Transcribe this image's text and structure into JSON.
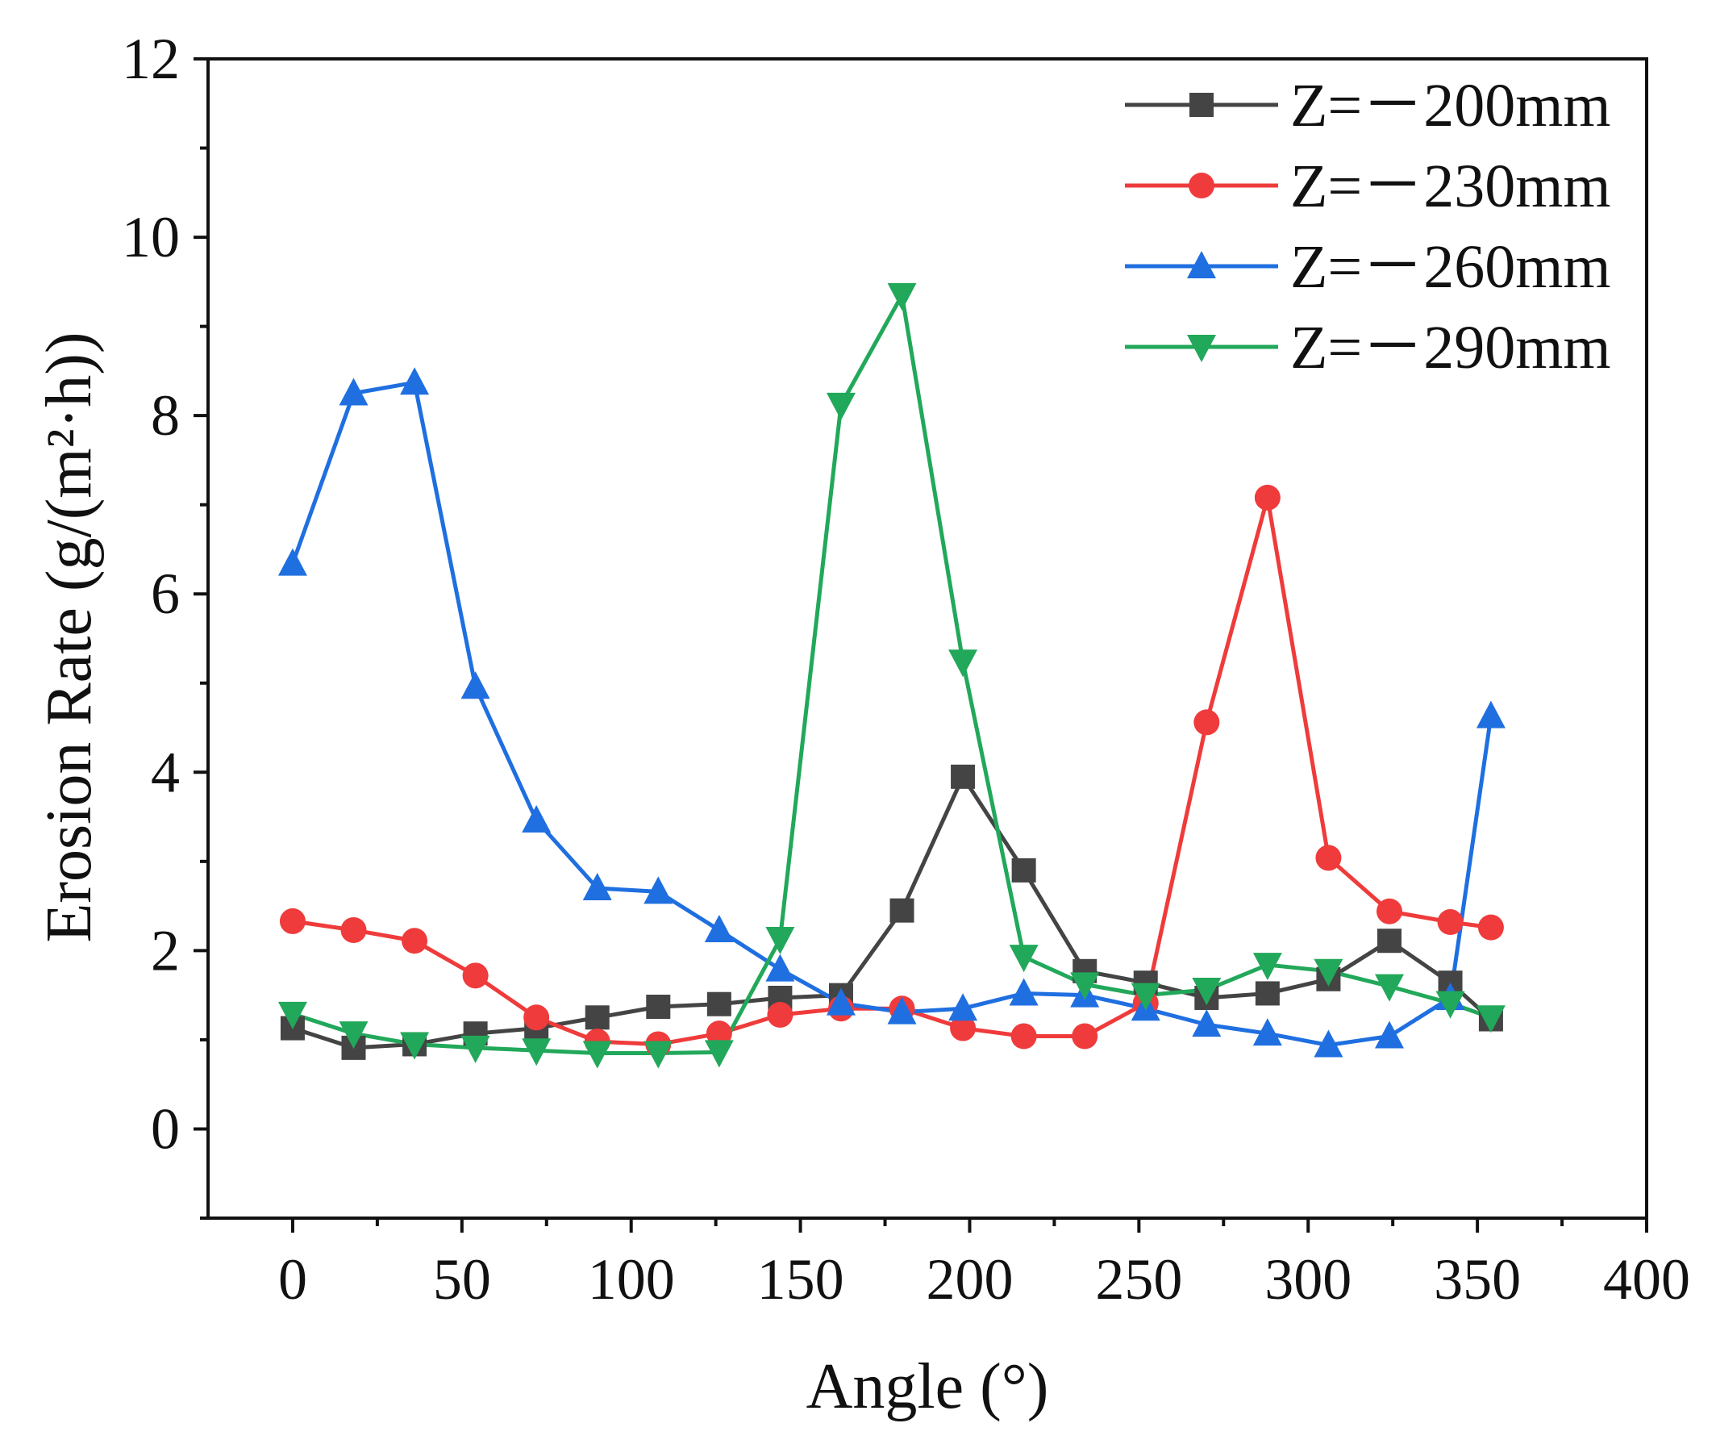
{
  "chart_data": {
    "type": "line",
    "title": "",
    "xlabel": "Angle (°)",
    "ylabel": "Erosion Rate (g/(m²·h))",
    "xlim": [
      -25,
      400
    ],
    "ylim": [
      -1,
      12
    ],
    "xticks": [
      0,
      50,
      100,
      150,
      200,
      250,
      300,
      350,
      400
    ],
    "yticks": [
      0,
      2,
      4,
      6,
      8,
      10,
      12
    ],
    "grid": false,
    "legend_position": "top-right",
    "x": [
      0,
      18,
      36,
      54,
      72,
      90,
      108,
      126,
      144,
      162,
      180,
      198,
      216,
      234,
      252,
      270,
      288,
      306,
      324,
      342,
      354
    ],
    "series": [
      {
        "name": "Z=－200mm",
        "color": "#444444",
        "marker": "square",
        "values": [
          1.13,
          0.91,
          0.95,
          1.07,
          1.13,
          1.25,
          1.37,
          1.4,
          1.47,
          1.5,
          2.45,
          3.95,
          2.9,
          1.77,
          1.64,
          1.47,
          1.52,
          1.68,
          2.11,
          1.64,
          1.23
        ]
      },
      {
        "name": "Z=－230mm",
        "color": "#ef3b3b",
        "marker": "circle",
        "values": [
          2.33,
          2.23,
          2.11,
          1.72,
          1.25,
          0.98,
          0.95,
          1.07,
          1.28,
          1.35,
          1.35,
          1.13,
          1.04,
          1.04,
          1.41,
          4.56,
          7.08,
          3.04,
          2.44,
          2.32,
          2.26
        ]
      },
      {
        "name": "Z=－260mm",
        "color": "#1f6fe0",
        "marker": "triangle-up",
        "values": [
          6.34,
          8.25,
          8.37,
          4.96,
          3.46,
          2.7,
          2.66,
          2.23,
          1.79,
          1.41,
          1.31,
          1.35,
          1.52,
          1.5,
          1.35,
          1.17,
          1.07,
          0.94,
          1.04,
          1.47,
          4.63
        ]
      },
      {
        "name": "Z=－290mm",
        "color": "#22a85a",
        "marker": "triangle-down",
        "values": [
          1.29,
          1.07,
          0.95,
          0.91,
          0.88,
          0.85,
          0.85,
          0.86,
          2.13,
          8.12,
          9.35,
          5.24,
          1.93,
          1.62,
          1.5,
          1.56,
          1.84,
          1.77,
          1.6,
          1.41,
          1.25
        ]
      }
    ]
  }
}
